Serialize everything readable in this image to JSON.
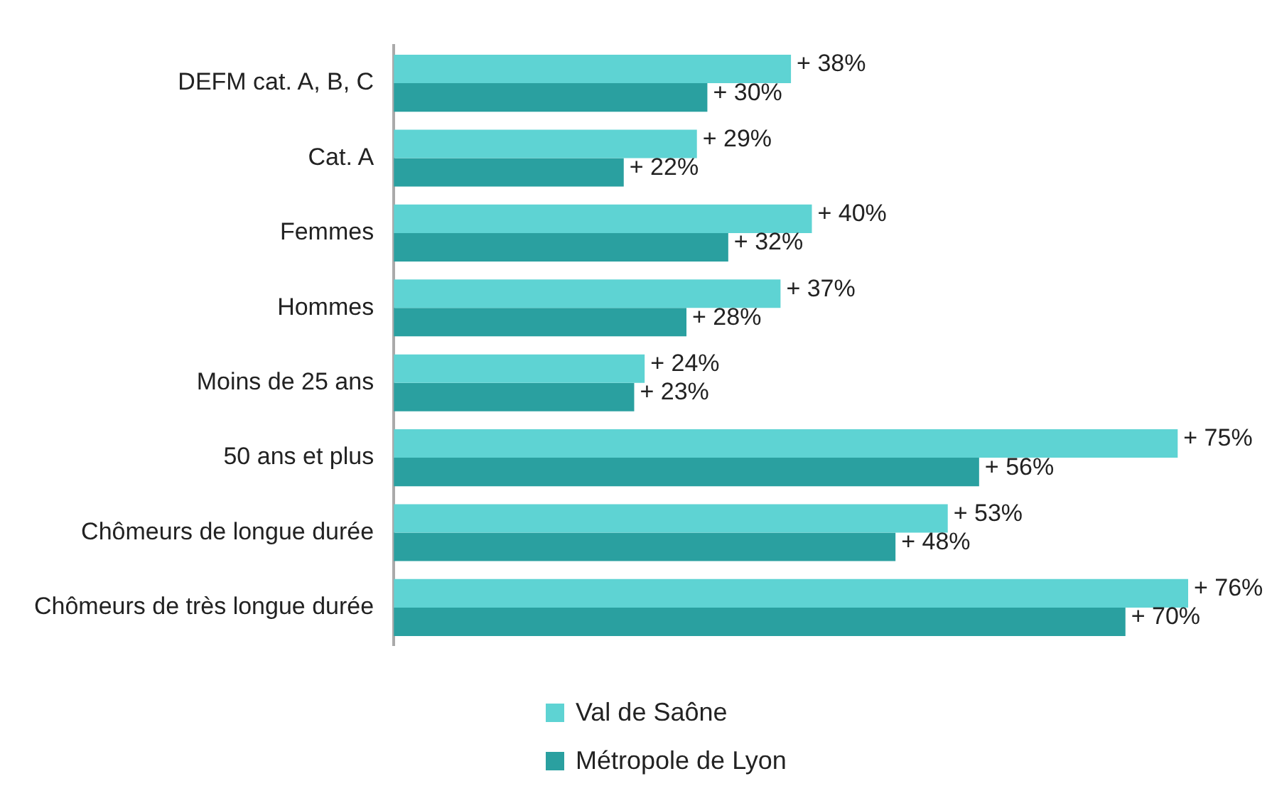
{
  "chart_data": {
    "type": "bar",
    "orientation": "horizontal",
    "categories": [
      "DEFM cat. A, B, C",
      "Cat. A",
      "Femmes",
      "Hommes",
      "Moins de 25 ans",
      "50 ans et plus",
      "Chômeurs de longue durée",
      "Chômeurs de très longue durée"
    ],
    "series": [
      {
        "name": "Val de Saône",
        "color": "#5ed3d3",
        "values": [
          38,
          29,
          40,
          37,
          24,
          75,
          53,
          76
        ],
        "value_labels": [
          "+ 38%",
          "+ 29%",
          "+ 40%",
          "+ 37%",
          "+ 24%",
          "+ 75%",
          "+ 53%",
          "+ 76%"
        ]
      },
      {
        "name": "Métropole de Lyon",
        "color": "#2aa0a0",
        "values": [
          30,
          22,
          32,
          28,
          23,
          56,
          48,
          70
        ],
        "value_labels": [
          "+ 30%",
          "+ 22%",
          "+ 32%",
          "+ 28%",
          "+ 23%",
          "+ 56%",
          "+ 48%",
          "+ 70%"
        ]
      }
    ],
    "legend": "bottom"
  }
}
